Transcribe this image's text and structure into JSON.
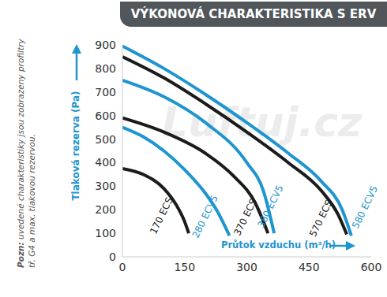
{
  "chart_data": {
    "type": "line",
    "title": "VÝKONOVÁ CHARAKTERISTIKA S ERV",
    "x_label": "Průtok vzduchu (m³/h)",
    "y_label": "Tlaková rezerva (Pa)",
    "annotations": [
      "Pozn: uvedené charakteristiky jsou zobrazeny profiltry tř. G4 a max. tlakovou rezervou.",
      "Luftuj.cz"
    ],
    "xlim": [
      0,
      600
    ],
    "xticks": [
      0,
      150,
      300,
      450,
      600
    ],
    "ylim": [
      0,
      900
    ],
    "yticks": [
      0,
      100,
      200,
      300,
      400,
      500,
      600,
      700,
      800,
      900
    ],
    "grid": false,
    "series": [
      {
        "name": "170 ECS",
        "color": "#1b1b1b",
        "x": [
          0,
          50,
          100,
          130,
          150,
          160
        ],
        "values": [
          375,
          350,
          290,
          220,
          150,
          100
        ]
      },
      {
        "name": "280 ECV5",
        "color": "#1e95cf",
        "x": [
          0,
          50,
          100,
          150,
          200,
          230,
          258
        ],
        "values": [
          550,
          510,
          450,
          370,
          270,
          190,
          90
        ]
      },
      {
        "name": "370 ECS",
        "color": "#1b1b1b",
        "x": [
          0,
          100,
          200,
          270,
          320,
          351
        ],
        "values": [
          590,
          530,
          440,
          340,
          230,
          100
        ]
      },
      {
        "name": "380 ECV5",
        "color": "#1e95cf",
        "x": [
          0,
          100,
          200,
          300,
          340,
          366
        ],
        "values": [
          750,
          680,
          570,
          400,
          280,
          100
        ]
      },
      {
        "name": "570 ECS",
        "color": "#1b1b1b",
        "x": [
          0,
          100,
          200,
          300,
          400,
          480,
          520,
          541
        ],
        "values": [
          850,
          760,
          650,
          530,
          400,
          280,
          180,
          95
        ]
      },
      {
        "name": "580 ECV5",
        "color": "#1e95cf",
        "x": [
          0,
          100,
          200,
          300,
          400,
          480,
          530,
          552
        ],
        "values": [
          895,
          800,
          690,
          570,
          440,
          320,
          200,
          90
        ]
      }
    ]
  }
}
